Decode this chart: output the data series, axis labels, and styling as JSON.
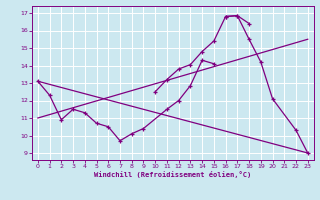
{
  "xlabel": "Windchill (Refroidissement éolien,°C)",
  "bg_color": "#cce8f0",
  "line_color": "#800080",
  "grid_color": "#ffffff",
  "xlim": [
    -0.5,
    23.5
  ],
  "ylim": [
    8.6,
    17.4
  ],
  "xticks": [
    0,
    1,
    2,
    3,
    4,
    5,
    6,
    7,
    8,
    9,
    10,
    11,
    12,
    13,
    14,
    15,
    16,
    17,
    18,
    19,
    20,
    21,
    22,
    23
  ],
  "yticks": [
    9,
    10,
    11,
    12,
    13,
    14,
    15,
    16,
    17
  ],
  "curve1_x": [
    0,
    1,
    2,
    3,
    4,
    5,
    6,
    7,
    8,
    9,
    11,
    12,
    13,
    14,
    15
  ],
  "curve1_y": [
    13.1,
    12.3,
    10.9,
    11.5,
    11.3,
    10.7,
    10.5,
    9.7,
    10.1,
    10.4,
    11.5,
    12.0,
    12.85,
    14.3,
    14.1
  ],
  "curve2_x": [
    10,
    11,
    12,
    13,
    14,
    15,
    16,
    17,
    18
  ],
  "curve2_y": [
    12.5,
    13.2,
    13.8,
    14.05,
    14.8,
    15.4,
    16.8,
    16.85,
    16.4
  ],
  "curve3_x": [
    16,
    17,
    18,
    19,
    20,
    22,
    23
  ],
  "curve3_y": [
    16.8,
    16.85,
    15.5,
    14.2,
    12.1,
    10.3,
    9.0
  ],
  "line1_x": [
    0,
    23
  ],
  "line1_y": [
    11.0,
    15.5
  ],
  "line2_x": [
    0,
    23
  ],
  "line2_y": [
    13.1,
    9.0
  ]
}
